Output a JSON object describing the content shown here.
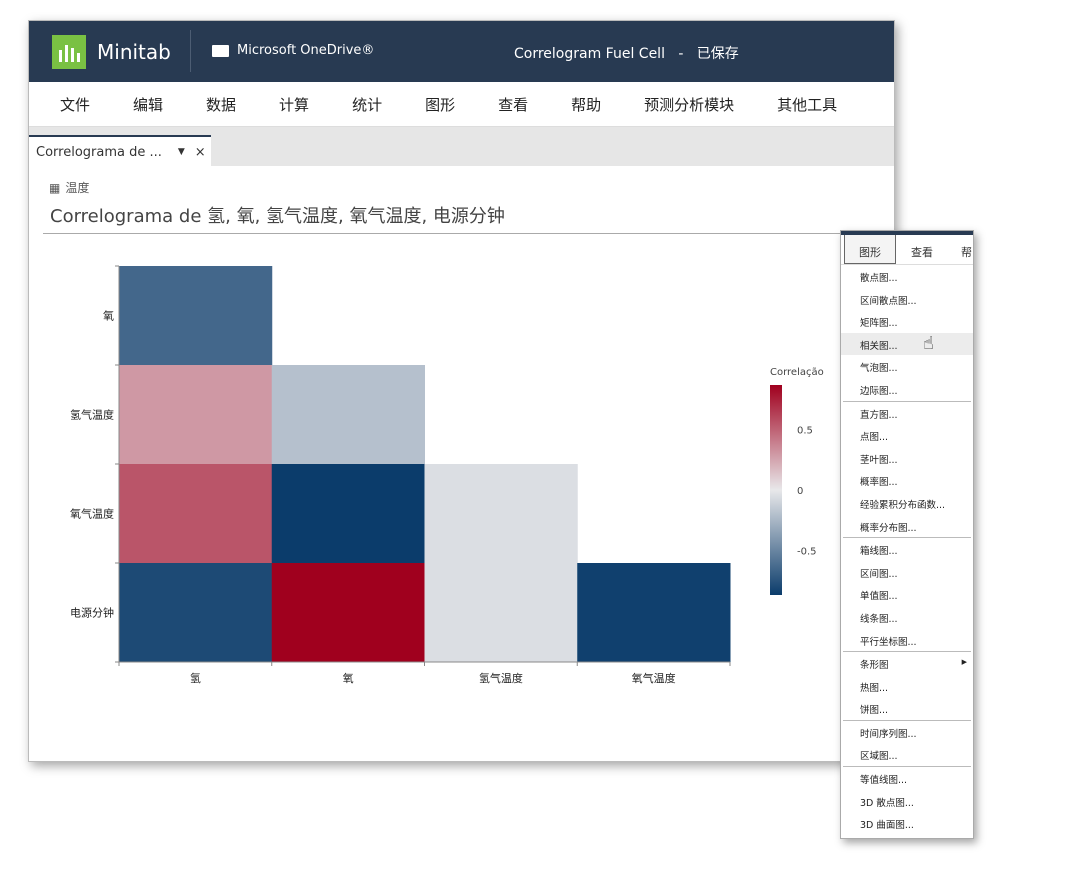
{
  "header": {
    "app_name": "Minitab",
    "storage": "Microsoft OneDrive®",
    "doc_title": "Correlogram Fuel Cell",
    "separator": "-",
    "save_status": "已保存"
  },
  "menubar": [
    "文件",
    "编辑",
    "数据",
    "计算",
    "统计",
    "图形",
    "查看",
    "帮助",
    "预测分析模块",
    "其他工具"
  ],
  "tab": {
    "label": "Correlograma de ...",
    "close": "×"
  },
  "breadcrumb": "温度",
  "page_title": "Correlograma de 氢, 氧, 氢气温度, 氧气温度, 电源分钟",
  "colors": {
    "header": "#283a52",
    "logo": "#7ac143",
    "positive": "#a0001e",
    "zero": "#e8e8ea",
    "negative": "#0b3c6b"
  },
  "chart_data": {
    "type": "heatmap",
    "x_categories": [
      "氢",
      "氧",
      "氢气温度",
      "氧气温度"
    ],
    "y_categories": [
      "氧",
      "氢气温度",
      "氧气温度",
      "电源分钟"
    ],
    "values": [
      [
        -0.65,
        null,
        null,
        null
      ],
      [
        0.3,
        -0.2,
        null,
        null
      ],
      [
        0.55,
        -0.9,
        -0.05,
        null
      ],
      [
        -0.8,
        0.9,
        -0.05,
        -0.85
      ]
    ],
    "legend_title": "Correlação",
    "legend_ticks": [
      0.5,
      0,
      -0.5
    ],
    "legend_tick_labels": [
      "0.5",
      "0",
      "-0.5"
    ],
    "color_range": [
      -0.87,
      0.87
    ],
    "legend_placement": "right"
  },
  "dropdown": {
    "tabs": [
      "图形",
      "查看",
      "帮"
    ],
    "groups": [
      [
        "散点图...",
        "区间散点图...",
        "矩阵图...",
        "相关图...",
        "气泡图...",
        "边际图..."
      ],
      [
        "直方图...",
        "点图...",
        "茎叶图...",
        "概率图...",
        "经验累积分布函数...",
        "概率分布图..."
      ],
      [
        "箱线图...",
        "区间图...",
        "单值图...",
        "线条图...",
        "平行坐标图..."
      ],
      [
        "条形图",
        "热图...",
        "饼图..."
      ],
      [
        "时间序列图...",
        "区域图..."
      ],
      [
        "等值线图...",
        "3D 散点图...",
        "3D 曲面图..."
      ]
    ],
    "hovered": "相关图...",
    "submenu_item": "条形图"
  }
}
